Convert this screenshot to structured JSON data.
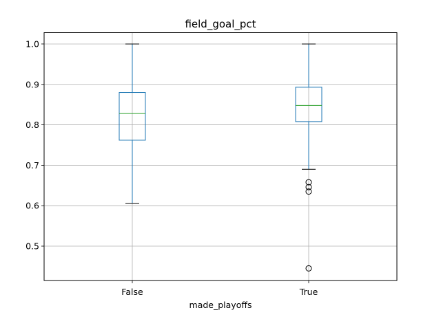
{
  "chart_data": {
    "type": "box",
    "title": "field_goal_pct",
    "xlabel": "made_playoffs",
    "ylabel": "",
    "ylim": [
      0.415,
      1.028
    ],
    "yticks": [
      0.5,
      0.6,
      0.7,
      0.8,
      0.9,
      1.0
    ],
    "ytick_labels": [
      "0.5",
      "0.6",
      "0.7",
      "0.8",
      "0.9",
      "1.0"
    ],
    "grid": true,
    "categories": [
      "False",
      "True"
    ],
    "boxes": [
      {
        "category": "False",
        "whisker_low": 0.606,
        "q1": 0.762,
        "median": 0.828,
        "q3": 0.88,
        "whisker_high": 1.0,
        "outliers": []
      },
      {
        "category": "True",
        "whisker_low": 0.69,
        "q1": 0.808,
        "median": 0.848,
        "q3": 0.893,
        "whisker_high": 1.0,
        "outliers": [
          0.658,
          0.646,
          0.635,
          0.445
        ]
      }
    ],
    "colors": {
      "box": "#1f77b4",
      "median": "#2ca02c",
      "whisker": "#1f77b4",
      "cap": "#000000",
      "flier": "#000000",
      "grid": "#b0b0b0"
    }
  }
}
